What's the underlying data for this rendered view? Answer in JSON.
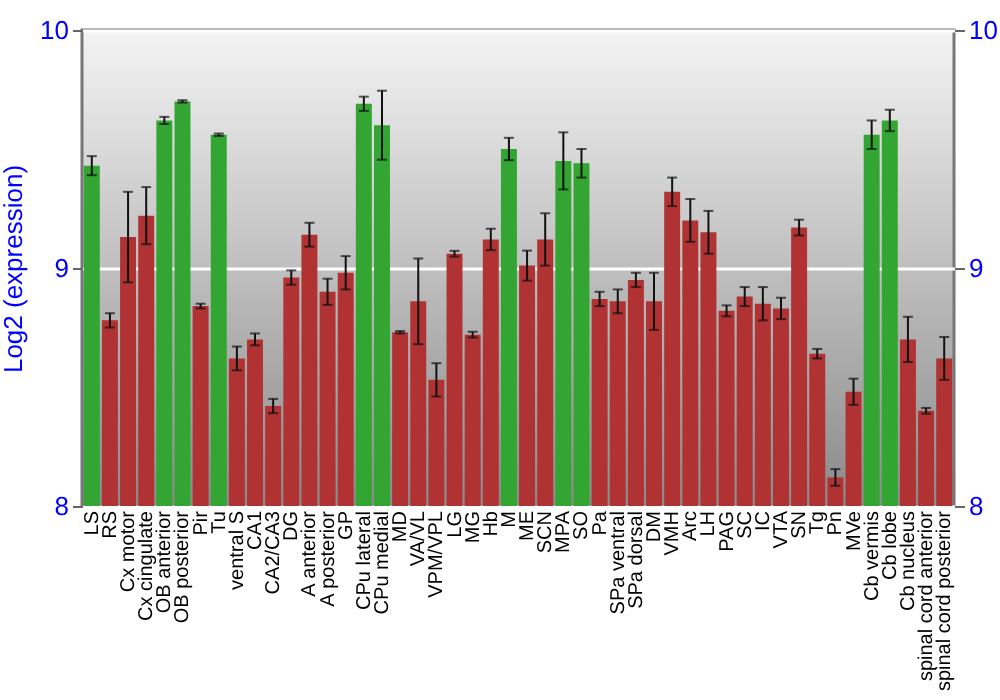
{
  "chart_data": {
    "type": "bar",
    "ylabel": "Log2 (expression)",
    "categories": [
      "LS",
      "RS",
      "Cx motor",
      "Cx cingulate",
      "OB anterior",
      "OB posterior",
      "Pir",
      "Tu",
      "ventral S",
      "CA1",
      "CA2/CA3",
      "DG",
      "A anterior",
      "A posterior",
      "GP",
      "CPu lateral",
      "CPu medial",
      "MD",
      "VA/VL",
      "VPM/VPL",
      "LG",
      "MG",
      "Hb",
      "M",
      "ME",
      "SCN",
      "MPA",
      "SO",
      "Pa",
      "SPa ventral",
      "SPa dorsal",
      "DM",
      "VMH",
      "Arc",
      "LH",
      "PAG",
      "SC",
      "IC",
      "VTA",
      "SN",
      "Tg",
      "Pn",
      "MVe",
      "Cb vermis",
      "Cb lobe",
      "Cb nucleus",
      "spinal cord anterior",
      "spinal cord posterior"
    ],
    "values": [
      9.43,
      8.78,
      9.13,
      9.22,
      9.62,
      9.7,
      8.84,
      9.56,
      8.62,
      8.7,
      8.42,
      8.96,
      9.14,
      8.9,
      8.98,
      9.69,
      9.6,
      8.73,
      8.86,
      8.53,
      9.06,
      8.72,
      9.12,
      9.5,
      9.01,
      9.12,
      9.45,
      9.44,
      8.87,
      8.86,
      8.95,
      8.86,
      9.32,
      9.2,
      9.15,
      8.82,
      8.88,
      8.85,
      8.83,
      9.17,
      8.64,
      8.12,
      8.48,
      9.56,
      9.62,
      8.7,
      8.4,
      8.62
    ],
    "errors": [
      0.04,
      0.03,
      0.19,
      0.12,
      0.015,
      0.005,
      0.01,
      0.005,
      0.05,
      0.025,
      0.03,
      0.03,
      0.05,
      0.055,
      0.07,
      0.03,
      0.145,
      0.005,
      0.18,
      0.07,
      0.012,
      0.012,
      0.045,
      0.047,
      0.063,
      0.11,
      0.12,
      0.06,
      0.03,
      0.05,
      0.03,
      0.12,
      0.06,
      0.09,
      0.09,
      0.023,
      0.04,
      0.07,
      0.045,
      0.033,
      0.02,
      0.035,
      0.055,
      0.06,
      0.045,
      0.095,
      0.012,
      0.09
    ],
    "colors": [
      "#33a533",
      "#b03232",
      "#b03232",
      "#b03232",
      "#33a533",
      "#33a533",
      "#b03232",
      "#33a533",
      "#b03232",
      "#b03232",
      "#b03232",
      "#b03232",
      "#b03232",
      "#b03232",
      "#b03232",
      "#33a533",
      "#33a533",
      "#b03232",
      "#b03232",
      "#b03232",
      "#b03232",
      "#b03232",
      "#b03232",
      "#33a533",
      "#b03232",
      "#b03232",
      "#33a533",
      "#33a533",
      "#b03232",
      "#b03232",
      "#b03232",
      "#b03232",
      "#b03232",
      "#b03232",
      "#b03232",
      "#b03232",
      "#b03232",
      "#b03232",
      "#b03232",
      "#b03232",
      "#b03232",
      "#b03232",
      "#b03232",
      "#33a533",
      "#33a533",
      "#b03232",
      "#b03232",
      "#b03232"
    ],
    "ylim": [
      8,
      10
    ],
    "yticks": [
      8,
      9,
      10
    ],
    "y2lim": [
      8,
      10
    ],
    "y2ticks": [
      8,
      9,
      10
    ],
    "grid": "y"
  }
}
